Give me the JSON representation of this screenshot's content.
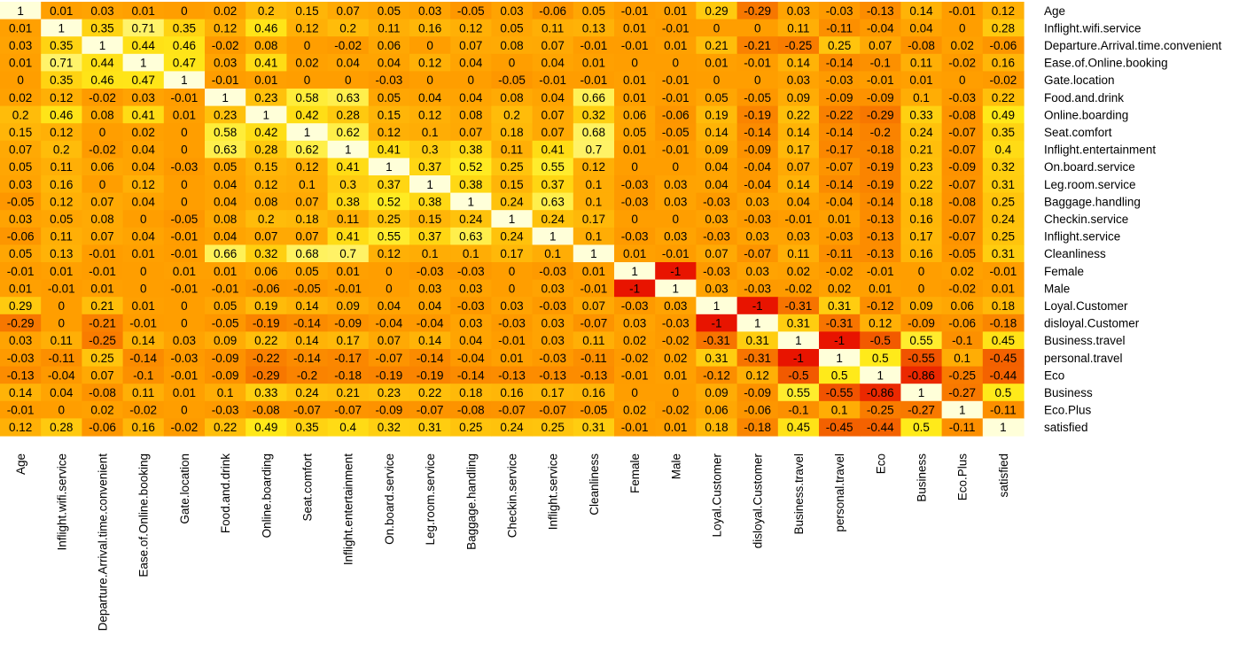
{
  "chart_data": {
    "type": "heatmap",
    "title": "",
    "xlabel": "",
    "ylabel": "",
    "variables": [
      "Age",
      "Inflight.wifi.service",
      "Departure.Arrival.time.convenient",
      "Ease.of.Online.booking",
      "Gate.location",
      "Food.and.drink",
      "Online.boarding",
      "Seat.comfort",
      "Inflight.entertainment",
      "On.board.service",
      "Leg.room.service",
      "Baggage.handling",
      "Checkin.service",
      "Inflight.service",
      "Cleanliness",
      "Female",
      "Male",
      "Loyal.Customer",
      "disloyal.Customer",
      "Business.travel",
      "personal.travel",
      "Eco",
      "Business",
      "Eco.Plus",
      "satisfied"
    ],
    "matrix": [
      [
        "1",
        "0.01",
        "0.03",
        "0.01",
        "0",
        "0.02",
        "0.2",
        "0.15",
        "0.07",
        "0.05",
        "0.03",
        "-0.05",
        "0.03",
        "-0.06",
        "0.05",
        "-0.01",
        "0.01",
        "0.29",
        "-0.29",
        "0.03",
        "-0.03",
        "-0.13",
        "0.14",
        "-0.01",
        "0.12"
      ],
      [
        "0.01",
        "1",
        "0.35",
        "0.71",
        "0.35",
        "0.12",
        "0.46",
        "0.12",
        "0.2",
        "0.11",
        "0.16",
        "0.12",
        "0.05",
        "0.11",
        "0.13",
        "0.01",
        "-0.01",
        "0",
        "0",
        "0.11",
        "-0.11",
        "-0.04",
        "0.04",
        "0",
        "0.28"
      ],
      [
        "0.03",
        "0.35",
        "1",
        "0.44",
        "0.46",
        "-0.02",
        "0.08",
        "0",
        "-0.02",
        "0.06",
        "0",
        "0.07",
        "0.08",
        "0.07",
        "-0.01",
        "-0.01",
        "0.01",
        "0.21",
        "-0.21",
        "-0.25",
        "0.25",
        "0.07",
        "-0.08",
        "0.02",
        "-0.06"
      ],
      [
        "0.01",
        "0.71",
        "0.44",
        "1",
        "0.47",
        "0.03",
        "0.41",
        "0.02",
        "0.04",
        "0.04",
        "0.12",
        "0.04",
        "0",
        "0.04",
        "0.01",
        "0",
        "0",
        "0.01",
        "-0.01",
        "0.14",
        "-0.14",
        "-0.1",
        "0.11",
        "-0.02",
        "0.16"
      ],
      [
        "0",
        "0.35",
        "0.46",
        "0.47",
        "1",
        "-0.01",
        "0.01",
        "0",
        "0",
        "-0.03",
        "0",
        "0",
        "-0.05",
        "-0.01",
        "-0.01",
        "0.01",
        "-0.01",
        "0",
        "0",
        "0.03",
        "-0.03",
        "-0.01",
        "0.01",
        "0",
        "-0.02"
      ],
      [
        "0.02",
        "0.12",
        "-0.02",
        "0.03",
        "-0.01",
        "1",
        "0.23",
        "0.58",
        "0.63",
        "0.05",
        "0.04",
        "0.04",
        "0.08",
        "0.04",
        "0.66",
        "0.01",
        "-0.01",
        "0.05",
        "-0.05",
        "0.09",
        "-0.09",
        "-0.09",
        "0.1",
        "-0.03",
        "0.22"
      ],
      [
        "0.2",
        "0.46",
        "0.08",
        "0.41",
        "0.01",
        "0.23",
        "1",
        "0.42",
        "0.28",
        "0.15",
        "0.12",
        "0.08",
        "0.2",
        "0.07",
        "0.32",
        "0.06",
        "-0.06",
        "0.19",
        "-0.19",
        "0.22",
        "-0.22",
        "-0.29",
        "0.33",
        "-0.08",
        "0.49"
      ],
      [
        "0.15",
        "0.12",
        "0",
        "0.02",
        "0",
        "0.58",
        "0.42",
        "1",
        "0.62",
        "0.12",
        "0.1",
        "0.07",
        "0.18",
        "0.07",
        "0.68",
        "0.05",
        "-0.05",
        "0.14",
        "-0.14",
        "0.14",
        "-0.14",
        "-0.2",
        "0.24",
        "-0.07",
        "0.35"
      ],
      [
        "0.07",
        "0.2",
        "-0.02",
        "0.04",
        "0",
        "0.63",
        "0.28",
        "0.62",
        "1",
        "0.41",
        "0.3",
        "0.38",
        "0.11",
        "0.41",
        "0.7",
        "0.01",
        "-0.01",
        "0.09",
        "-0.09",
        "0.17",
        "-0.17",
        "-0.18",
        "0.21",
        "-0.07",
        "0.4"
      ],
      [
        "0.05",
        "0.11",
        "0.06",
        "0.04",
        "-0.03",
        "0.05",
        "0.15",
        "0.12",
        "0.41",
        "1",
        "0.37",
        "0.52",
        "0.25",
        "0.55",
        "0.12",
        "0",
        "0",
        "0.04",
        "-0.04",
        "0.07",
        "-0.07",
        "-0.19",
        "0.23",
        "-0.09",
        "0.32"
      ],
      [
        "0.03",
        "0.16",
        "0",
        "0.12",
        "0",
        "0.04",
        "0.12",
        "0.1",
        "0.3",
        "0.37",
        "1",
        "0.38",
        "0.15",
        "0.37",
        "0.1",
        "-0.03",
        "0.03",
        "0.04",
        "-0.04",
        "0.14",
        "-0.14",
        "-0.19",
        "0.22",
        "-0.07",
        "0.31"
      ],
      [
        "-0.05",
        "0.12",
        "0.07",
        "0.04",
        "0",
        "0.04",
        "0.08",
        "0.07",
        "0.38",
        "0.52",
        "0.38",
        "1",
        "0.24",
        "0.63",
        "0.1",
        "-0.03",
        "0.03",
        "-0.03",
        "0.03",
        "0.04",
        "-0.04",
        "-0.14",
        "0.18",
        "-0.08",
        "0.25"
      ],
      [
        "0.03",
        "0.05",
        "0.08",
        "0",
        "-0.05",
        "0.08",
        "0.2",
        "0.18",
        "0.11",
        "0.25",
        "0.15",
        "0.24",
        "1",
        "0.24",
        "0.17",
        "0",
        "0",
        "0.03",
        "-0.03",
        "-0.01",
        "0.01",
        "-0.13",
        "0.16",
        "-0.07",
        "0.24"
      ],
      [
        "-0.06",
        "0.11",
        "0.07",
        "0.04",
        "-0.01",
        "0.04",
        "0.07",
        "0.07",
        "0.41",
        "0.55",
        "0.37",
        "0.63",
        "0.24",
        "1",
        "0.1",
        "-0.03",
        "0.03",
        "-0.03",
        "0.03",
        "0.03",
        "-0.03",
        "-0.13",
        "0.17",
        "-0.07",
        "0.25"
      ],
      [
        "0.05",
        "0.13",
        "-0.01",
        "0.01",
        "-0.01",
        "0.66",
        "0.32",
        "0.68",
        "0.7",
        "0.12",
        "0.1",
        "0.1",
        "0.17",
        "0.1",
        "1",
        "0.01",
        "-0.01",
        "0.07",
        "-0.07",
        "0.11",
        "-0.11",
        "-0.13",
        "0.16",
        "-0.05",
        "0.31"
      ],
      [
        "-0.01",
        "0.01",
        "-0.01",
        "0",
        "0.01",
        "0.01",
        "0.06",
        "0.05",
        "0.01",
        "0",
        "-0.03",
        "-0.03",
        "0",
        "-0.03",
        "0.01",
        "1",
        "-1",
        "-0.03",
        "0.03",
        "0.02",
        "-0.02",
        "-0.01",
        "0",
        "0.02",
        "-0.01"
      ],
      [
        "0.01",
        "-0.01",
        "0.01",
        "0",
        "-0.01",
        "-0.01",
        "-0.06",
        "-0.05",
        "-0.01",
        "0",
        "0.03",
        "0.03",
        "0",
        "0.03",
        "-0.01",
        "-1",
        "1",
        "0.03",
        "-0.03",
        "-0.02",
        "0.02",
        "0.01",
        "0",
        "-0.02",
        "0.01"
      ],
      [
        "0.29",
        "0",
        "0.21",
        "0.01",
        "0",
        "0.05",
        "0.19",
        "0.14",
        "0.09",
        "0.04",
        "0.04",
        "-0.03",
        "0.03",
        "-0.03",
        "0.07",
        "-0.03",
        "0.03",
        "1",
        "-1",
        "-0.31",
        "0.31",
        "-0.12",
        "0.09",
        "0.06",
        "0.18"
      ],
      [
        "-0.29",
        "0",
        "-0.21",
        "-0.01",
        "0",
        "-0.05",
        "-0.19",
        "-0.14",
        "-0.09",
        "-0.04",
        "-0.04",
        "0.03",
        "-0.03",
        "0.03",
        "-0.07",
        "0.03",
        "-0.03",
        "-1",
        "1",
        "0.31",
        "-0.31",
        "0.12",
        "-0.09",
        "-0.06",
        "-0.18"
      ],
      [
        "0.03",
        "0.11",
        "-0.25",
        "0.14",
        "0.03",
        "0.09",
        "0.22",
        "0.14",
        "0.17",
        "0.07",
        "0.14",
        "0.04",
        "-0.01",
        "0.03",
        "0.11",
        "0.02",
        "-0.02",
        "-0.31",
        "0.31",
        "1",
        "-1",
        "-0.5",
        "0.55",
        "-0.1",
        "0.45"
      ],
      [
        "-0.03",
        "-0.11",
        "0.25",
        "-0.14",
        "-0.03",
        "-0.09",
        "-0.22",
        "-0.14",
        "-0.17",
        "-0.07",
        "-0.14",
        "-0.04",
        "0.01",
        "-0.03",
        "-0.11",
        "-0.02",
        "0.02",
        "0.31",
        "-0.31",
        "-1",
        "1",
        "0.5",
        "-0.55",
        "0.1",
        "-0.45"
      ],
      [
        "-0.13",
        "-0.04",
        "0.07",
        "-0.1",
        "-0.01",
        "-0.09",
        "-0.29",
        "-0.2",
        "-0.18",
        "-0.19",
        "-0.19",
        "-0.14",
        "-0.13",
        "-0.13",
        "-0.13",
        "-0.01",
        "0.01",
        "-0.12",
        "0.12",
        "-0.5",
        "0.5",
        "1",
        "-0.86",
        "-0.25",
        "-0.44"
      ],
      [
        "0.14",
        "0.04",
        "-0.08",
        "0.11",
        "0.01",
        "0.1",
        "0.33",
        "0.24",
        "0.21",
        "0.23",
        "0.22",
        "0.18",
        "0.16",
        "0.17",
        "0.16",
        "0",
        "0",
        "0.09",
        "-0.09",
        "0.55",
        "-0.55",
        "-0.86",
        "1",
        "-0.27",
        "0.5"
      ],
      [
        "-0.01",
        "0",
        "0.02",
        "-0.02",
        "0",
        "-0.03",
        "-0.08",
        "-0.07",
        "-0.07",
        "-0.09",
        "-0.07",
        "-0.08",
        "-0.07",
        "-0.07",
        "-0.05",
        "0.02",
        "-0.02",
        "0.06",
        "-0.06",
        "-0.1",
        "0.1",
        "-0.25",
        "-0.27",
        "1",
        "-0.11"
      ],
      [
        "0.12",
        "0.28",
        "-0.06",
        "0.16",
        "-0.02",
        "0.22",
        "0.49",
        "0.35",
        "0.4",
        "0.32",
        "0.31",
        "0.25",
        "0.24",
        "0.25",
        "0.31",
        "-0.01",
        "0.01",
        "0.18",
        "-0.18",
        "0.45",
        "-0.45",
        "-0.44",
        "0.5",
        "-0.11",
        "1"
      ]
    ],
    "value_range": [
      -1,
      1
    ],
    "grid": false,
    "legend": "none",
    "colors": {
      "low": "#e81400",
      "mid_low": "#f25a00",
      "mid": "#ff9e00",
      "mid_high": "#ffea1a",
      "high": "#ffffd9"
    }
  }
}
